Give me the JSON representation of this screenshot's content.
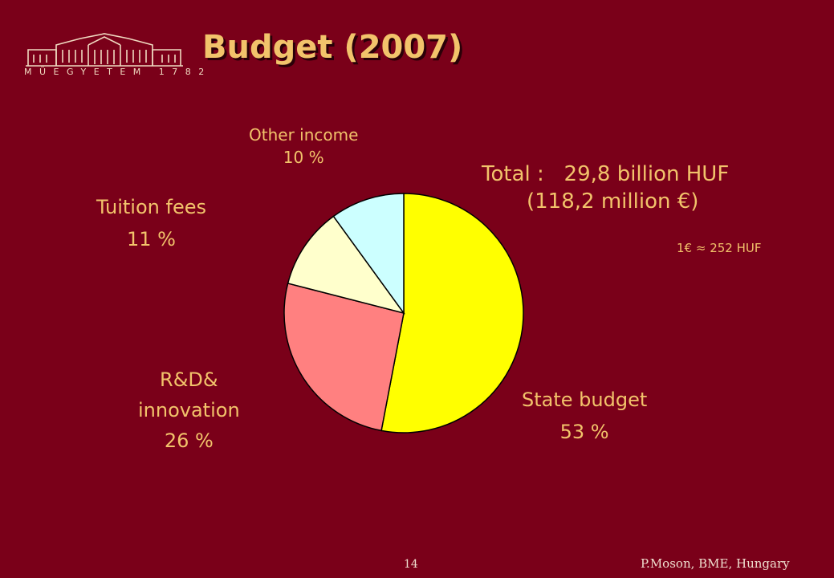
{
  "slide": {
    "title": "Budget (2007)",
    "logo_text": "MÜEGYETEM 1782",
    "total_label": "Total :",
    "total_value": "29,8 billion HUF",
    "total_eur": "(118,2 million €)",
    "exchange_rate": "1€ ≈ 252 HUF",
    "page_number": "14",
    "author": "P.Moson, BME, Hungary"
  },
  "chart_data": {
    "type": "pie",
    "title": "Budget (2007)",
    "slices": [
      {
        "name": "State budget",
        "value": 53,
        "pct_label": "53 %",
        "color": "#ffff00"
      },
      {
        "name": "R&D& innovation",
        "name_line1": "R&D&",
        "name_line2": "innovation",
        "value": 26,
        "pct_label": "26 %",
        "color": "#ff8080"
      },
      {
        "name": "Tuition fees",
        "value": 11,
        "pct_label": "11 %",
        "color": "#ffffcc"
      },
      {
        "name": "Other income",
        "value": 10,
        "pct_label": "10 %",
        "color": "#ccffff"
      }
    ]
  }
}
